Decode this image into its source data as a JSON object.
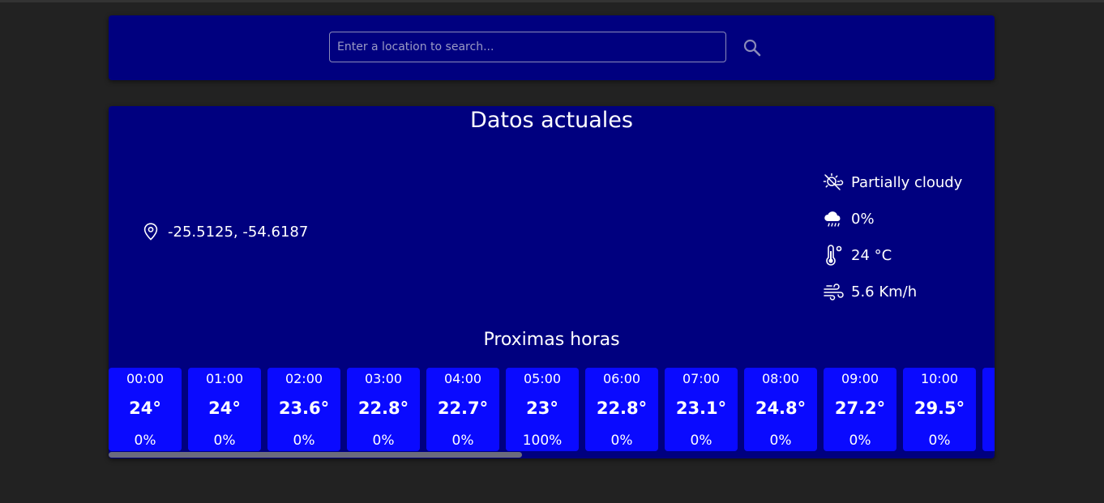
{
  "search": {
    "placeholder": "Enter a location to search...",
    "value": ""
  },
  "current": {
    "title": "Datos actuales",
    "location": "-25.5125, -54.6187",
    "condition": "Partially cloudy",
    "precipitation": "0%",
    "temperature": "24 °C",
    "wind": "5.6 Km/h"
  },
  "forecast": {
    "title": "Proximas horas",
    "hours": [
      {
        "time": "00:00",
        "temp": "24°",
        "prob": "0%"
      },
      {
        "time": "01:00",
        "temp": "24°",
        "prob": "0%"
      },
      {
        "time": "02:00",
        "temp": "23.6°",
        "prob": "0%"
      },
      {
        "time": "03:00",
        "temp": "22.8°",
        "prob": "0%"
      },
      {
        "time": "04:00",
        "temp": "22.7°",
        "prob": "0%"
      },
      {
        "time": "05:00",
        "temp": "23°",
        "prob": "100%"
      },
      {
        "time": "06:00",
        "temp": "22.8°",
        "prob": "0%"
      },
      {
        "time": "07:00",
        "temp": "23.1°",
        "prob": "0%"
      },
      {
        "time": "08:00",
        "temp": "24.8°",
        "prob": "0%"
      },
      {
        "time": "09:00",
        "temp": "27.2°",
        "prob": "0%"
      },
      {
        "time": "10:00",
        "temp": "29.5°",
        "prob": "0%"
      }
    ]
  },
  "colors": {
    "page_bg": "#222222",
    "card_bg": "#00007f",
    "hour_card_bg": "#0a0aff",
    "text": "#ffffff"
  },
  "icons": {
    "search": "search-icon",
    "location": "map-pin-icon",
    "condition": "partly-cloudy-icon",
    "precipitation": "rain-cloud-icon",
    "temperature": "thermometer-icon",
    "wind": "wind-icon"
  }
}
